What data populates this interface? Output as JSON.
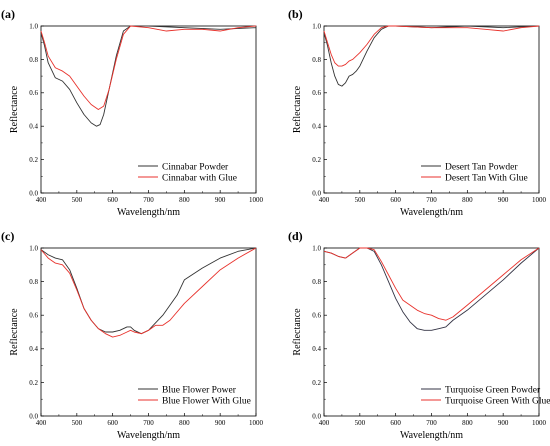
{
  "chart_data": [
    {
      "type": "line",
      "panel": "(a)",
      "xlabel": "Wavelength/nm",
      "ylabel": "Reflectance",
      "xlim": [
        400,
        1000
      ],
      "ylim": [
        0.0,
        1.0
      ],
      "xticks": [
        400,
        500,
        600,
        700,
        800,
        900,
        1000
      ],
      "yticks": [
        0.0,
        0.2,
        0.4,
        0.6,
        0.8,
        1.0
      ],
      "legend_position": "bottom-right",
      "series": [
        {
          "name": "Cinnabar Powder",
          "color": "#333333",
          "x": [
            400,
            410,
            420,
            440,
            460,
            480,
            500,
            520,
            540,
            555,
            565,
            575,
            590,
            610,
            630,
            650,
            700,
            800,
            900,
            1000
          ],
          "y": [
            0.96,
            0.88,
            0.78,
            0.69,
            0.67,
            0.62,
            0.54,
            0.47,
            0.42,
            0.4,
            0.41,
            0.47,
            0.62,
            0.82,
            0.97,
            1.0,
            1.0,
            0.99,
            0.98,
            0.99
          ]
        },
        {
          "name": "Cinnabar with Glue",
          "color": "#e8322c",
          "x": [
            400,
            410,
            420,
            440,
            460,
            480,
            500,
            520,
            540,
            560,
            575,
            590,
            610,
            630,
            650,
            700,
            750,
            800,
            850,
            900,
            950,
            1000
          ],
          "y": [
            0.97,
            0.9,
            0.82,
            0.75,
            0.73,
            0.7,
            0.64,
            0.58,
            0.53,
            0.5,
            0.52,
            0.62,
            0.8,
            0.95,
            1.0,
            0.99,
            0.97,
            0.98,
            0.98,
            0.97,
            0.99,
            1.0
          ]
        }
      ]
    },
    {
      "type": "line",
      "panel": "(b)",
      "xlabel": "Wavelength/nm",
      "ylabel": "Reflectance",
      "xlim": [
        400,
        1000
      ],
      "ylim": [
        0.0,
        1.0
      ],
      "xticks": [
        400,
        500,
        600,
        700,
        800,
        900,
        1000
      ],
      "yticks": [
        0.0,
        0.2,
        0.4,
        0.6,
        0.8,
        1.0
      ],
      "legend_position": "bottom-right",
      "series": [
        {
          "name": "Desert Tan Powder",
          "color": "#333333",
          "x": [
            400,
            410,
            420,
            430,
            440,
            450,
            460,
            470,
            480,
            490,
            500,
            520,
            540,
            560,
            580,
            600,
            700,
            800,
            900,
            1000
          ],
          "y": [
            0.96,
            0.88,
            0.78,
            0.7,
            0.65,
            0.64,
            0.66,
            0.7,
            0.71,
            0.73,
            0.76,
            0.85,
            0.93,
            0.98,
            1.0,
            1.0,
            0.99,
            1.0,
            0.99,
            1.0
          ]
        },
        {
          "name": "Desert Tan With Glue",
          "color": "#e8322c",
          "x": [
            400,
            410,
            420,
            430,
            440,
            450,
            460,
            470,
            480,
            490,
            500,
            520,
            540,
            560,
            580,
            600,
            700,
            800,
            850,
            900,
            950,
            1000
          ],
          "y": [
            0.97,
            0.9,
            0.83,
            0.78,
            0.76,
            0.76,
            0.77,
            0.79,
            0.8,
            0.82,
            0.84,
            0.89,
            0.95,
            0.99,
            1.0,
            1.0,
            0.99,
            0.99,
            0.98,
            0.97,
            0.99,
            1.0
          ]
        }
      ]
    },
    {
      "type": "line",
      "panel": "(c)",
      "xlabel": "Wavelength/nm",
      "ylabel": "Reflectance",
      "xlim": [
        400,
        1000
      ],
      "ylim": [
        0.0,
        1.0
      ],
      "xticks": [
        400,
        500,
        600,
        700,
        800,
        900,
        1000
      ],
      "yticks": [
        0.0,
        0.2,
        0.4,
        0.6,
        0.8,
        1.0
      ],
      "legend_position": "bottom-right",
      "series": [
        {
          "name": "Blue Flower Power",
          "color": "#333333",
          "x": [
            400,
            420,
            440,
            460,
            480,
            500,
            520,
            540,
            560,
            580,
            600,
            620,
            640,
            650,
            660,
            680,
            700,
            740,
            780,
            800,
            850,
            900,
            950,
            1000
          ],
          "y": [
            0.99,
            0.96,
            0.94,
            0.93,
            0.87,
            0.76,
            0.64,
            0.57,
            0.52,
            0.5,
            0.5,
            0.51,
            0.53,
            0.53,
            0.51,
            0.49,
            0.51,
            0.6,
            0.72,
            0.81,
            0.88,
            0.94,
            0.98,
            1.0
          ]
        },
        {
          "name": "Blue Flower With Glue",
          "color": "#e8322c",
          "x": [
            400,
            420,
            440,
            460,
            480,
            500,
            520,
            540,
            560,
            580,
            600,
            620,
            640,
            650,
            660,
            680,
            700,
            720,
            740,
            760,
            800,
            850,
            900,
            950,
            1000
          ],
          "y": [
            0.99,
            0.94,
            0.91,
            0.9,
            0.85,
            0.75,
            0.64,
            0.57,
            0.52,
            0.49,
            0.47,
            0.48,
            0.5,
            0.51,
            0.5,
            0.49,
            0.51,
            0.54,
            0.54,
            0.57,
            0.67,
            0.77,
            0.87,
            0.94,
            1.0
          ]
        }
      ]
    },
    {
      "type": "line",
      "panel": "(d)",
      "xlabel": "Wavelength/nm",
      "ylabel": "Reflectance",
      "xlim": [
        400,
        1000
      ],
      "ylim": [
        0.0,
        1.0
      ],
      "xticks": [
        400,
        500,
        600,
        700,
        800,
        900,
        1000
      ],
      "yticks": [
        0.0,
        0.2,
        0.4,
        0.6,
        0.8,
        1.0
      ],
      "legend_position": "bottom-right",
      "series": [
        {
          "name": "Turquoise Green Powder",
          "color": "#333344",
          "x": [
            400,
            420,
            440,
            460,
            480,
            500,
            520,
            540,
            560,
            580,
            600,
            620,
            640,
            660,
            680,
            700,
            720,
            740,
            760,
            800,
            850,
            900,
            950,
            1000
          ],
          "y": [
            0.98,
            0.97,
            0.95,
            0.94,
            0.97,
            1.0,
            1.0,
            0.98,
            0.9,
            0.8,
            0.7,
            0.62,
            0.56,
            0.52,
            0.51,
            0.51,
            0.52,
            0.53,
            0.57,
            0.63,
            0.72,
            0.81,
            0.91,
            1.0
          ]
        },
        {
          "name": "Turquoise Green With Glue",
          "color": "#e8322c",
          "x": [
            400,
            420,
            440,
            460,
            480,
            500,
            520,
            540,
            560,
            580,
            600,
            620,
            640,
            660,
            680,
            700,
            720,
            740,
            760,
            800,
            850,
            900,
            950,
            1000
          ],
          "y": [
            0.98,
            0.97,
            0.95,
            0.94,
            0.97,
            1.0,
            1.0,
            0.99,
            0.92,
            0.84,
            0.76,
            0.69,
            0.66,
            0.63,
            0.61,
            0.6,
            0.58,
            0.57,
            0.59,
            0.66,
            0.75,
            0.84,
            0.93,
            1.0
          ]
        }
      ]
    }
  ]
}
